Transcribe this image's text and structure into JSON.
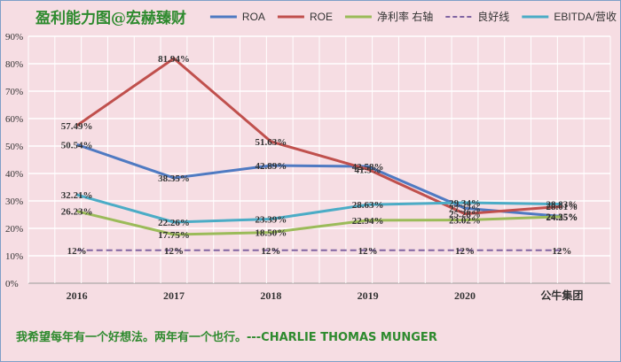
{
  "chart_data": {
    "type": "line",
    "title": "盈利能力图@宏赫臻财",
    "categories": [
      "2016",
      "2017",
      "2018",
      "2019",
      "2020",
      "公牛集团"
    ],
    "ylim": [
      0,
      90
    ],
    "yticks": [
      "0%",
      "10%",
      "20%",
      "30%",
      "40%",
      "50%",
      "60%",
      "70%",
      "80%",
      "90%"
    ],
    "grid": true,
    "legend_position": "top-right",
    "series": [
      {
        "name": "ROA",
        "color": "#4f7ac2",
        "dash": false,
        "values": [
          50.54,
          38.35,
          42.89,
          42.58,
          27.32,
          24.35
        ],
        "labels": [
          "50.54%",
          "38.35%",
          "42.89%",
          "42.58%",
          "27.32%",
          "24.35%"
        ]
      },
      {
        "name": "ROE",
        "color": "#c0504d",
        "dash": false,
        "values": [
          57.49,
          81.94,
          51.63,
          41.5,
          25.28,
          28.01
        ],
        "labels": [
          "57.49%",
          "81.94%",
          "51.63%",
          "41.5%",
          "25.28%",
          "28.01%"
        ]
      },
      {
        "name": "净利率 右轴",
        "color": "#9bbb59",
        "dash": false,
        "values": [
          26.23,
          17.75,
          18.5,
          22.94,
          23.02,
          24.25
        ],
        "labels": [
          "26.23%",
          "17.75%",
          "18.50%",
          "22.94%",
          "23.02%",
          "24.25%"
        ]
      },
      {
        "name": "良好线",
        "color": "#8064a2",
        "dash": true,
        "values": [
          12,
          12,
          12,
          12,
          12,
          12
        ],
        "labels": [
          "12%",
          "12%",
          "12%",
          "12%",
          "12%",
          "12%"
        ]
      },
      {
        "name": "EBITDA/营收",
        "color": "#4bacc6",
        "dash": false,
        "values": [
          32.21,
          22.26,
          23.39,
          28.63,
          29.34,
          28.83
        ],
        "labels": [
          "32.21%",
          "22.26%",
          "23.39%",
          "28.63%",
          "29.34%",
          "28.83%"
        ]
      }
    ]
  },
  "footer": {
    "quote": "我希望每年有一个好想法。两年有一个也行。---CHARLIE THOMAS MUNGER"
  }
}
